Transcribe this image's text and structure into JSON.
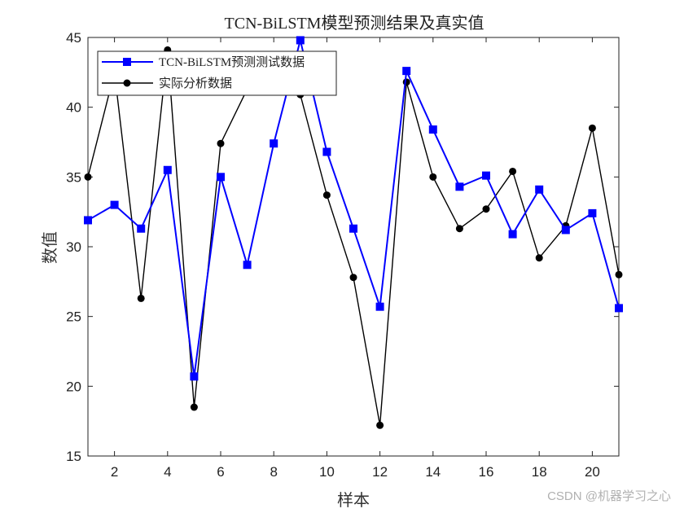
{
  "chart_data": {
    "type": "line",
    "title": "TCN-BiLSTM模型预测结果及真实值",
    "xlabel": "样本",
    "ylabel": "数值",
    "xlim": [
      1,
      21
    ],
    "ylim": [
      15,
      45
    ],
    "xticks": [
      2,
      4,
      6,
      8,
      10,
      12,
      14,
      16,
      18,
      20
    ],
    "yticks": [
      15,
      20,
      25,
      30,
      35,
      40,
      45
    ],
    "grid": false,
    "legend_position": "upper-left",
    "x": [
      1,
      2,
      3,
      4,
      5,
      6,
      7,
      8,
      9,
      10,
      11,
      12,
      13,
      14,
      15,
      16,
      17,
      18,
      19,
      20,
      21
    ],
    "series": [
      {
        "name": "TCN-BiLSTM预测测试数据",
        "color": "#0000ff",
        "marker": "square",
        "values": [
          31.9,
          33.0,
          31.3,
          35.5,
          20.7,
          35.0,
          28.7,
          37.4,
          44.8,
          36.8,
          31.3,
          25.7,
          42.6,
          38.4,
          34.3,
          35.1,
          30.9,
          34.1,
          31.2,
          32.4,
          25.6
        ]
      },
      {
        "name": "实际分析数据",
        "color": "#000000",
        "marker": "circle",
        "values": [
          35.0,
          42.5,
          26.3,
          44.1,
          18.5,
          37.4,
          41.3,
          41.6,
          40.9,
          33.7,
          27.8,
          17.2,
          41.8,
          35.0,
          31.3,
          32.7,
          35.4,
          29.2,
          31.5,
          38.5,
          28.0
        ]
      }
    ]
  },
  "watermark": "CSDN @机器学习之心"
}
